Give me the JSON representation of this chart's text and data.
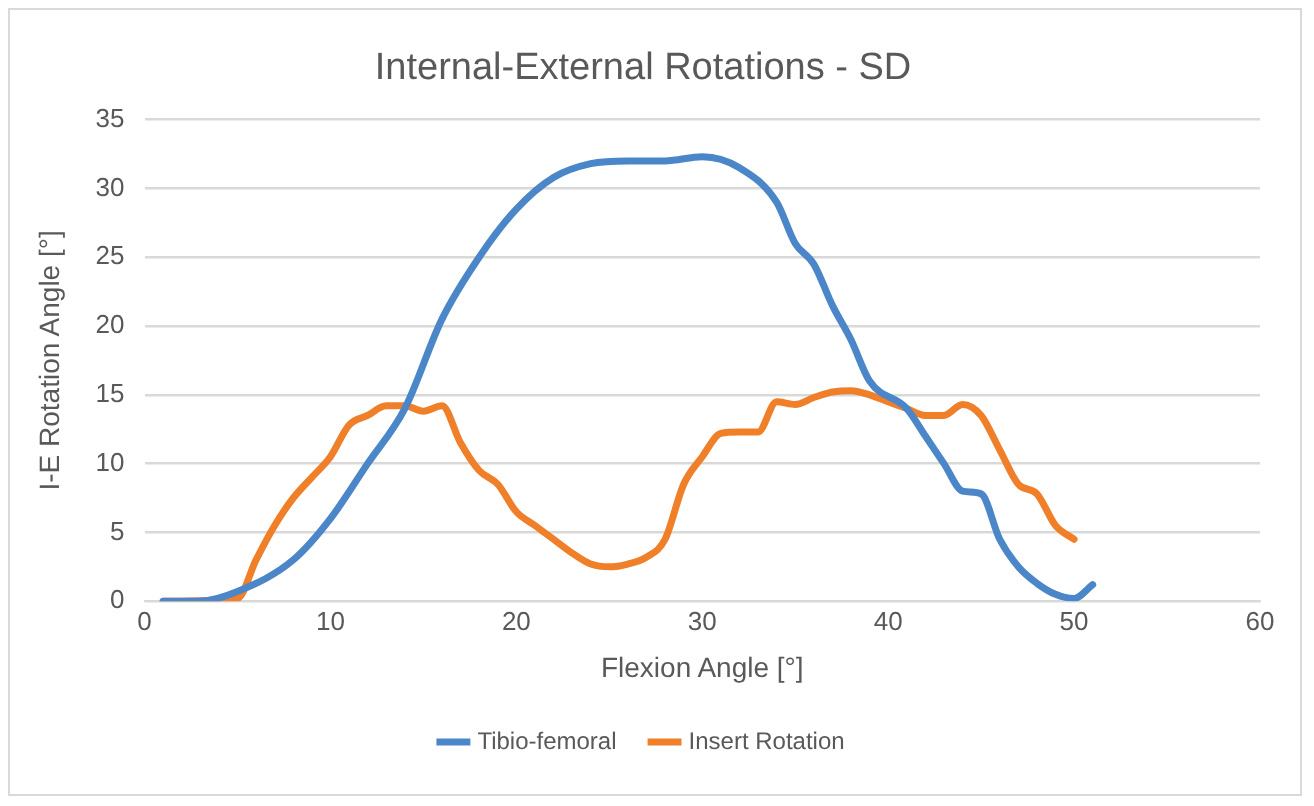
{
  "chart_data": {
    "type": "line",
    "title": "Internal-External Rotations - SD",
    "xlabel": "Flexion Angle [°]",
    "ylabel": "I-E Rotation Angle [°]",
    "xlim": [
      0,
      60
    ],
    "xticks": [
      0,
      10,
      20,
      30,
      40,
      50,
      60
    ],
    "ylim": [
      0,
      35
    ],
    "yticks": [
      0,
      5,
      10,
      15,
      20,
      25,
      30,
      35
    ],
    "grid": "y",
    "legend": "bottom",
    "marker": "none",
    "line_style": "solid",
    "series": [
      {
        "name": "Tibio-femoral",
        "color": "#4a86c8",
        "x": [
          1,
          3,
          5,
          8,
          10,
          12,
          14,
          16,
          18,
          20,
          22,
          24,
          26,
          28,
          30,
          32,
          34,
          35,
          36,
          37,
          38,
          39,
          41,
          42,
          43,
          44,
          45,
          46,
          47,
          48,
          49,
          50,
          51
        ],
        "values": [
          0,
          0,
          0.7,
          3,
          6,
          10,
          14,
          20.5,
          25,
          28.5,
          30.8,
          31.8,
          32,
          32,
          32.3,
          31.5,
          29,
          26,
          24.5,
          21.5,
          19,
          16,
          14,
          12,
          10,
          8,
          7.8,
          4.5,
          2.5,
          1.3,
          0.5,
          0.2,
          1.2
        ]
      },
      {
        "name": "Insert Rotation",
        "color": "#f07f2a",
        "x": [
          1,
          5,
          6,
          7,
          8,
          9,
          10,
          11,
          12,
          13,
          14,
          15,
          16,
          17,
          18,
          19,
          20,
          21,
          22,
          23,
          24,
          25,
          26,
          27,
          28,
          29,
          30,
          31,
          32,
          33,
          34,
          35,
          36,
          37,
          38,
          39,
          40,
          41,
          42,
          43,
          44,
          45,
          46,
          47,
          48,
          49,
          50
        ],
        "values": [
          0,
          0.2,
          3,
          5.5,
          7.5,
          9,
          10.5,
          12.8,
          13.5,
          14.2,
          14.2,
          13.8,
          14.2,
          11.5,
          9.5,
          8.5,
          6.5,
          5.5,
          4.5,
          3.5,
          2.7,
          2.5,
          2.7,
          3.2,
          4.5,
          8.5,
          10.5,
          12.2,
          12.3,
          12.3,
          14.5,
          14.3,
          14.8,
          15.2,
          15.3,
          15,
          14.5,
          14,
          13.5,
          13.5,
          14.3,
          13.5,
          11,
          8.5,
          7.8,
          5.5,
          4.5
        ]
      }
    ]
  }
}
